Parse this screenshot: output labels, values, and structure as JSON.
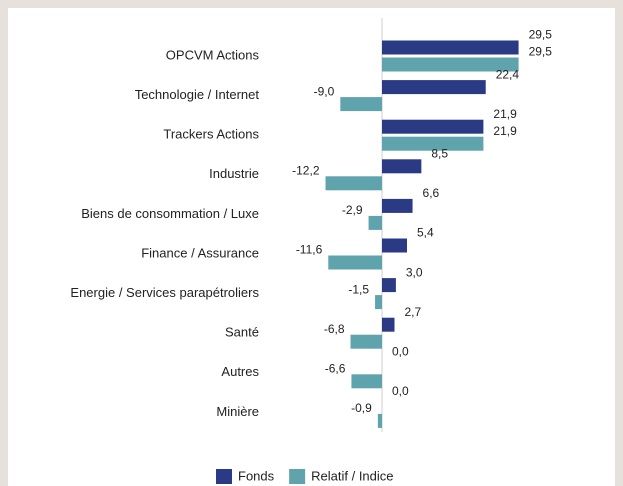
{
  "chart_data": {
    "type": "bar",
    "orientation": "horizontal",
    "categories": [
      "OPCVM Actions",
      "Technologie / Internet",
      "Trackers Actions",
      "Industrie",
      "Biens de consommation / Luxe",
      "Finance / Assurance",
      "Energie / Services parapétroliers",
      "Santé",
      "Autres",
      "Minière"
    ],
    "series": [
      {
        "name": "Fonds",
        "color": "#2b3a84",
        "values": [
          29.5,
          22.4,
          21.9,
          8.5,
          6.6,
          5.4,
          3.0,
          2.7,
          0.0,
          0.0
        ],
        "value_labels": [
          "29,5",
          "22,4",
          "21,9",
          "8,5",
          "6,6",
          "5,4",
          "3,0",
          "2,7",
          "0,0",
          "0,0"
        ]
      },
      {
        "name": "Relatif / Indice",
        "color": "#5fa3ad",
        "values": [
          29.5,
          -9.0,
          21.9,
          -12.2,
          -2.9,
          -11.6,
          -1.5,
          -6.8,
          -6.6,
          -0.9
        ],
        "value_labels": [
          "29,5",
          "-9,0",
          "21,9",
          "-12,2",
          "-2,9",
          "-11,6",
          "-1,5",
          "-6,8",
          "-6,6",
          "-0,9"
        ]
      }
    ],
    "legend": "bottom"
  }
}
